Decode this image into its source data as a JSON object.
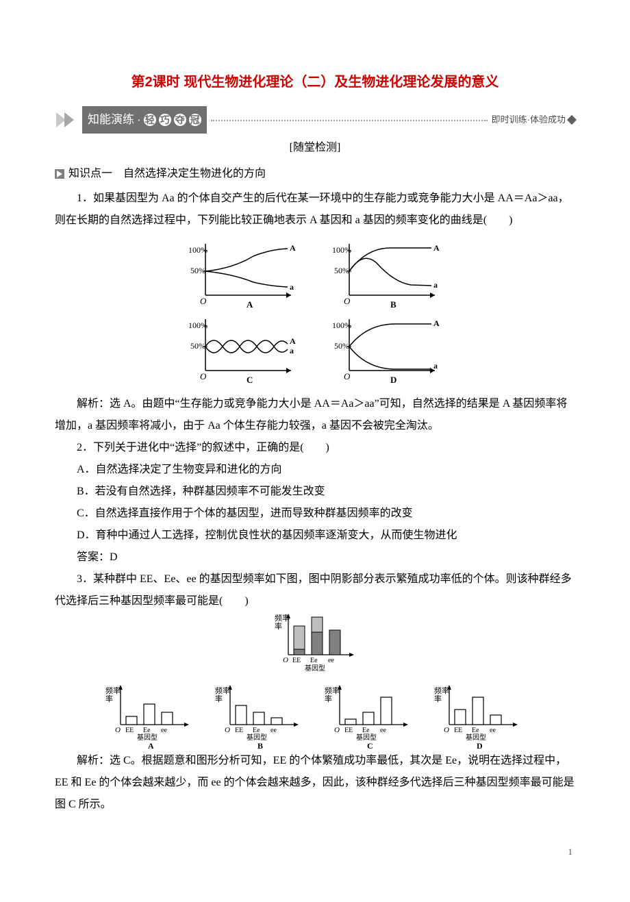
{
  "title": "第2课时 现代生物进化理论（二）及生物进化理论发展的意义",
  "banner": {
    "left_text": "知能演练",
    "quark_chars": [
      "轻",
      "巧",
      "夺",
      "冠"
    ],
    "right_text": "即时训练·体验成功",
    "bg_color": "#707070",
    "fg_color": "#ffffff",
    "dot_color": "#9a9a9a"
  },
  "section_label": "[随堂检测]",
  "kp1": {
    "icon": "play-square-icon",
    "label": "知识点一　自然选择决定生物进化的方向"
  },
  "q1": {
    "stem": "1．如果基因型为 Aa 的个体自交产生的后代在某一环境中的生存能力或竞争能力大小是 AA＝Aa＞aa，则在长期的自然选择过程中，下列能比较正确地表示 A 基因和 a 基因的频率变化的曲线是(　　)",
    "charts": {
      "y_ticks": [
        "100%",
        "50%"
      ],
      "labels": {
        "A": "A",
        "a": "a"
      },
      "options": [
        "A",
        "B",
        "C",
        "D"
      ],
      "axis_color": "#000000",
      "line_color": "#000000",
      "bg": "#ffffff"
    },
    "explain": "解析：选 A。由题中“生存能力或竞争能力大小是 AA＝Aa＞aa”可知，自然选择的结果是 A 基因频率将增加，a 基因频率将减小，由于 Aa 个体生存能力较强，a 基因不会被完全淘汰。"
  },
  "q2": {
    "stem": "2．下列关于进化中“选择”的叙述中，正确的是(　　)",
    "opts": {
      "A": "A．自然选择决定了生物变异和进化的方向",
      "B": "B．若没有自然选择，种群基因频率不可能发生改变",
      "C": "C．自然选择直接作用于个体的基因型，进而导致种群基因频率的改变",
      "D": "D．育种中通过人工选择，控制优良性状的基因频率逐渐变大，从而使生物进化"
    },
    "answer": "答案：D"
  },
  "q3": {
    "stem": "3．某种群中 EE、Ee、ee 的基因型频率如下图，图中阴影部分表示繁殖成功率低的个体。则该种群经多代选择后三种基因型频率最可能是(　　)",
    "axis": {
      "ylab": "频率",
      "xlab": "基因型",
      "cats": [
        "EE",
        "Ee",
        "ee"
      ]
    },
    "top_chart": {
      "heights": [
        42,
        55,
        36
      ],
      "shaded": [
        34,
        22,
        0
      ],
      "bar_color": "#808080",
      "shade_color": "#bfbfbf",
      "outline": "#000000"
    },
    "options": [
      {
        "label": "A",
        "heights": [
          12,
          30,
          18
        ]
      },
      {
        "label": "B",
        "heights": [
          28,
          18,
          10
        ]
      },
      {
        "label": "C",
        "heights": [
          8,
          18,
          40
        ]
      },
      {
        "label": "D",
        "heights": [
          22,
          40,
          14
        ]
      }
    ],
    "opt_fill": "#ffffff",
    "opt_outline": "#000000",
    "explain": "解析：选 C。根据题意和图形分析可知，EE 的个体繁殖成功率最低，其次是 Ee，说明在选择过程中，EE 和 Ee 的个体会越来越少，而 ee 的个体会越来越多，因此，该种群经多代选择后三种基因型频率最可能是图 C 所示。"
  },
  "page_number": "1"
}
